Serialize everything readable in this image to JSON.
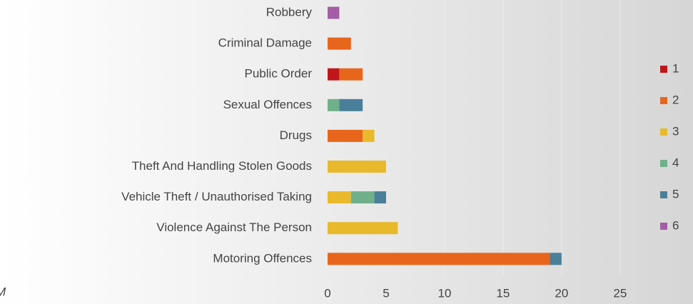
{
  "chart_data": {
    "type": "stacked_barh",
    "categories": [
      "Robbery",
      "Criminal Damage",
      "Public Order",
      "Sexual Offences",
      "Drugs",
      "Theft And Handling Stolen Goods",
      "Vehicle Theft / Unauthorised Taking",
      "Violence Against The Person",
      "Motoring Offences"
    ],
    "series": [
      {
        "name": "1",
        "color": "#c0161b",
        "values": [
          0,
          0,
          1,
          0,
          0,
          0,
          0,
          0,
          0
        ]
      },
      {
        "name": "2",
        "color": "#e8661b",
        "values": [
          0,
          2,
          2,
          0,
          3,
          0,
          0,
          0,
          19
        ]
      },
      {
        "name": "3",
        "color": "#e8b92b",
        "values": [
          0,
          0,
          0,
          0,
          1,
          5,
          2,
          6,
          0
        ]
      },
      {
        "name": "4",
        "color": "#6fb08a",
        "values": [
          0,
          0,
          0,
          1,
          0,
          0,
          2,
          0,
          0
        ]
      },
      {
        "name": "5",
        "color": "#4a7f9a",
        "values": [
          0,
          0,
          0,
          2,
          0,
          0,
          1,
          0,
          1
        ]
      },
      {
        "name": "6",
        "color": "#a35ea5",
        "values": [
          1,
          0,
          0,
          0,
          0,
          0,
          0,
          0,
          0
        ]
      }
    ],
    "xlim": [
      0,
      28
    ],
    "xticks": [
      0,
      5,
      10,
      15,
      20,
      25
    ],
    "grid": true,
    "legend": "right",
    "footer_text": "M"
  }
}
